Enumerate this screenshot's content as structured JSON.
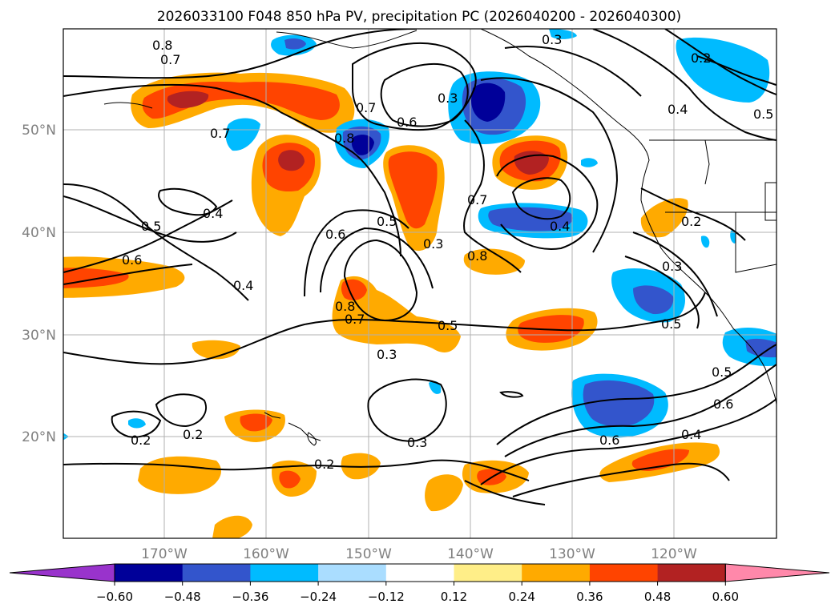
{
  "title": "2026033100 F048 850 hPa PV, precipitation PC (2026040200 - 2026040300)",
  "lon_labels": [
    "170°W",
    "160°W",
    "150°W",
    "140°W",
    "130°W",
    "120°W"
  ],
  "lat_labels": [
    "50°N",
    "40°N",
    "30°N",
    "20°N"
  ],
  "colorbar": {
    "ticks": [
      "−0.60",
      "−0.48",
      "−0.36",
      "−0.24",
      "−0.12",
      "0.12",
      "0.24",
      "0.36",
      "0.48",
      "0.60"
    ],
    "colors": [
      "#9933cc",
      "#000099",
      "#3355cc",
      "#00bbff",
      "#aaddff",
      "#ffffff",
      "#ffee88",
      "#ffaa00",
      "#ff4400",
      "#b22222",
      "#ff88aa"
    ]
  },
  "contour_labels": [
    "0.8",
    "0.7",
    "0.7",
    "0.6",
    "0.3",
    "0.3",
    "0.2",
    "0.4",
    "0.5",
    "0.8",
    "0.7",
    "0.6",
    "0.4",
    "0.5",
    "0.6",
    "0.4",
    "0.5",
    "0.7",
    "0.4",
    "0.8",
    "0.8",
    "0.7",
    "0.5",
    "0.3",
    "0.2",
    "0.3",
    "0.5",
    "0.3",
    "0.2",
    "0.2",
    "0.2",
    "0.3",
    "0.6",
    "0.4",
    "0.5",
    "0.6"
  ]
}
